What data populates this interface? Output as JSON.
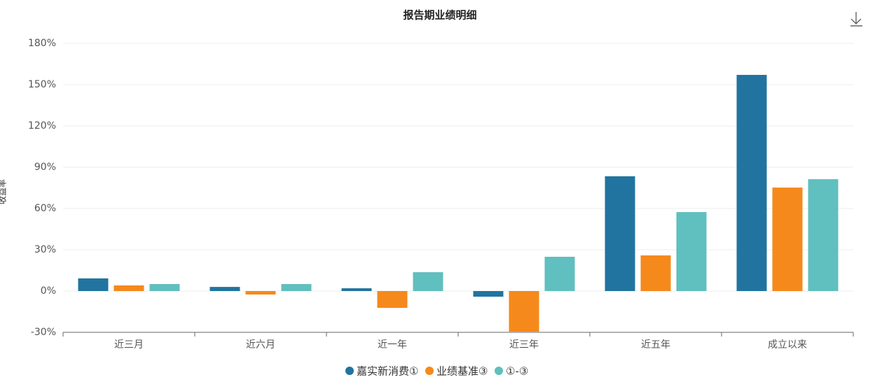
{
  "chart_data": {
    "type": "bar",
    "title": "报告期业绩明细",
    "y_label": "收益率",
    "categories": [
      "近三月",
      "近六月",
      "近一年",
      "近三年",
      "近五年",
      "成立以来"
    ],
    "series": [
      {
        "name": "嘉实新消费①",
        "color": "#21749f",
        "values": [
          9.2,
          3.0,
          2.0,
          -4.1,
          83.4,
          157.1
        ]
      },
      {
        "name": "业绩基准③",
        "color": "#f5891b",
        "values": [
          4.1,
          -2.5,
          -12.2,
          -29.5,
          25.9,
          75.2
        ]
      },
      {
        "name": "①-③",
        "color": "#60bfbf",
        "values": [
          5.1,
          5.1,
          13.7,
          24.9,
          57.4,
          81.3
        ]
      }
    ],
    "ylim": [
      -30,
      180
    ],
    "yticks": [
      {
        "value": -30,
        "label": "-30%"
      },
      {
        "value": 0,
        "label": "0%"
      },
      {
        "value": 30,
        "label": "30%"
      },
      {
        "value": 60,
        "label": "60%"
      },
      {
        "value": 90,
        "label": "90%"
      },
      {
        "value": 120,
        "label": "120%"
      },
      {
        "value": 150,
        "label": "150%"
      },
      {
        "value": 180,
        "label": "180%"
      }
    ],
    "grid": true,
    "legend": "bottom"
  }
}
